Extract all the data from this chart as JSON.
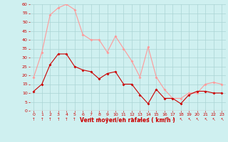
{
  "x": [
    0,
    1,
    2,
    3,
    4,
    5,
    6,
    7,
    8,
    9,
    10,
    11,
    12,
    13,
    14,
    15,
    16,
    17,
    18,
    19,
    20,
    21,
    22,
    23
  ],
  "wind_avg": [
    11,
    15,
    26,
    32,
    32,
    25,
    23,
    22,
    18,
    21,
    22,
    15,
    15,
    9,
    4,
    12,
    7,
    7,
    4,
    9,
    11,
    11,
    10,
    10
  ],
  "wind_gust": [
    19,
    33,
    54,
    58,
    60,
    57,
    43,
    40,
    40,
    33,
    42,
    35,
    28,
    19,
    36,
    19,
    12,
    7,
    7,
    10,
    10,
    15,
    16,
    15
  ],
  "bg_color": "#cff0f0",
  "grid_color": "#aad4d4",
  "avg_color": "#cc0000",
  "gust_color": "#ff9999",
  "xlabel": "Vent moyen/en rafales ( km/h )",
  "xlabel_color": "#cc0000",
  "tick_color": "#cc0000",
  "ylim": [
    0,
    60
  ],
  "yticks": [
    0,
    5,
    10,
    15,
    20,
    25,
    30,
    35,
    40,
    45,
    50,
    55,
    60
  ],
  "xticks": [
    0,
    1,
    2,
    3,
    4,
    5,
    6,
    7,
    8,
    9,
    10,
    11,
    12,
    13,
    14,
    15,
    16,
    17,
    18,
    19,
    20,
    21,
    22,
    23
  ]
}
